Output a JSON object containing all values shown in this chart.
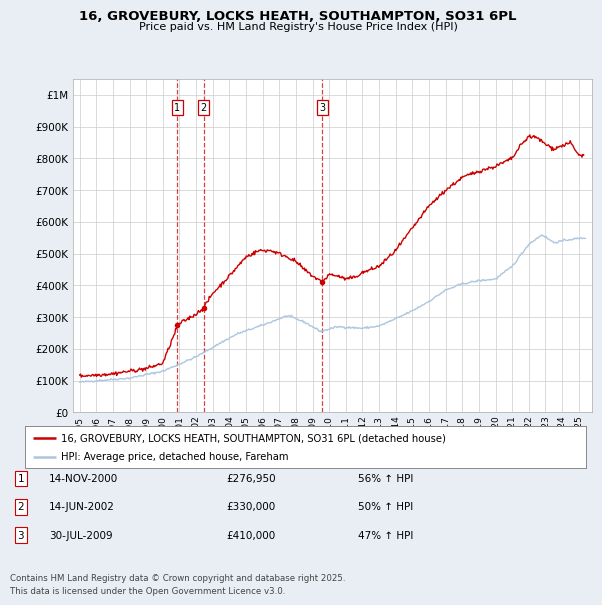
{
  "title": "16, GROVEBURY, LOCKS HEATH, SOUTHAMPTON, SO31 6PL",
  "subtitle": "Price paid vs. HM Land Registry's House Price Index (HPI)",
  "legend_line1": "16, GROVEBURY, LOCKS HEATH, SOUTHAMPTON, SO31 6PL (detached house)",
  "legend_line2": "HPI: Average price, detached house, Fareham",
  "transactions": [
    {
      "num": 1,
      "date": "14-NOV-2000",
      "price": 276950,
      "pct": "56%",
      "dir": "↑"
    },
    {
      "num": 2,
      "date": "14-JUN-2002",
      "price": 330000,
      "pct": "50%",
      "dir": "↑"
    },
    {
      "num": 3,
      "date": "30-JUL-2009",
      "price": 410000,
      "pct": "47%",
      "dir": "↑"
    }
  ],
  "footnote": "Contains HM Land Registry data © Crown copyright and database right 2025.\nThis data is licensed under the Open Government Licence v3.0.",
  "hpi_color": "#adc6e0",
  "price_color": "#cc0000",
  "vline_color": "#cc0000",
  "background_color": "#e8eef4",
  "plot_bg_color": "#ffffff",
  "ylim": [
    0,
    1050000
  ],
  "xlim_start": 1994.6,
  "xlim_end": 2025.8,
  "yticks": [
    0,
    100000,
    200000,
    300000,
    400000,
    500000,
    600000,
    700000,
    800000,
    900000,
    1000000
  ],
  "ylabels": [
    "£0",
    "£100K",
    "£200K",
    "£300K",
    "£400K",
    "£500K",
    "£600K",
    "£700K",
    "£800K",
    "£900K",
    "£1M"
  ],
  "hpi_anchors": [
    [
      1995.0,
      95000
    ],
    [
      1996.0,
      100000
    ],
    [
      1998.0,
      108000
    ],
    [
      2000.0,
      130000
    ],
    [
      2002.0,
      175000
    ],
    [
      2003.5,
      220000
    ],
    [
      2004.5,
      248000
    ],
    [
      2006.0,
      275000
    ],
    [
      2007.5,
      305000
    ],
    [
      2008.5,
      285000
    ],
    [
      2009.5,
      255000
    ],
    [
      2010.5,
      270000
    ],
    [
      2012.0,
      265000
    ],
    [
      2013.0,
      272000
    ],
    [
      2014.0,
      295000
    ],
    [
      2015.0,
      320000
    ],
    [
      2016.0,
      350000
    ],
    [
      2017.0,
      385000
    ],
    [
      2018.0,
      405000
    ],
    [
      2019.0,
      415000
    ],
    [
      2020.0,
      420000
    ],
    [
      2021.0,
      460000
    ],
    [
      2022.0,
      530000
    ],
    [
      2022.8,
      560000
    ],
    [
      2023.5,
      535000
    ],
    [
      2024.5,
      545000
    ],
    [
      2025.4,
      550000
    ]
  ],
  "price_anchors": [
    [
      1995.0,
      115000
    ],
    [
      1996.0,
      118000
    ],
    [
      1997.0,
      122000
    ],
    [
      1998.0,
      130000
    ],
    [
      1999.0,
      138000
    ],
    [
      2000.0,
      155000
    ],
    [
      2000.92,
      276950
    ],
    [
      2001.5,
      295000
    ],
    [
      2002.0,
      310000
    ],
    [
      2002.46,
      330000
    ],
    [
      2003.0,
      375000
    ],
    [
      2004.0,
      430000
    ],
    [
      2005.0,
      490000
    ],
    [
      2005.8,
      510000
    ],
    [
      2006.5,
      510000
    ],
    [
      2007.0,
      500000
    ],
    [
      2007.5,
      490000
    ],
    [
      2008.0,
      475000
    ],
    [
      2008.5,
      450000
    ],
    [
      2009.0,
      430000
    ],
    [
      2009.58,
      410000
    ],
    [
      2010.0,
      435000
    ],
    [
      2010.5,
      430000
    ],
    [
      2011.0,
      420000
    ],
    [
      2011.5,
      425000
    ],
    [
      2012.0,
      440000
    ],
    [
      2013.0,
      460000
    ],
    [
      2014.0,
      510000
    ],
    [
      2015.0,
      580000
    ],
    [
      2016.0,
      650000
    ],
    [
      2017.0,
      700000
    ],
    [
      2018.0,
      740000
    ],
    [
      2019.0,
      760000
    ],
    [
      2020.0,
      775000
    ],
    [
      2021.0,
      800000
    ],
    [
      2021.5,
      840000
    ],
    [
      2022.0,
      870000
    ],
    [
      2022.5,
      865000
    ],
    [
      2023.0,
      845000
    ],
    [
      2023.5,
      830000
    ],
    [
      2024.0,
      840000
    ],
    [
      2024.5,
      850000
    ],
    [
      2025.0,
      810000
    ],
    [
      2025.3,
      810000
    ]
  ],
  "trans_dates_dec": [
    2000.879,
    2002.454,
    2009.581
  ],
  "trans_prices": [
    276950,
    330000,
    410000
  ]
}
